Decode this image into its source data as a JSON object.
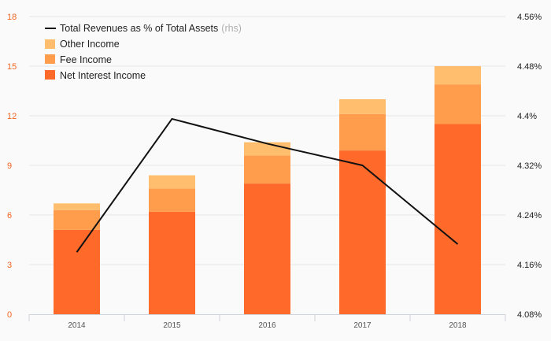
{
  "chart_data": {
    "type": "bar",
    "stacked": true,
    "categories": [
      "2014",
      "2015",
      "2016",
      "2017",
      "2018"
    ],
    "series": [
      {
        "name": "Net Interest Income",
        "values": [
          5.1,
          6.2,
          7.9,
          9.9,
          11.5
        ],
        "color": "#ff6a2b"
      },
      {
        "name": "Fee Income",
        "values": [
          1.2,
          1.4,
          1.7,
          2.2,
          2.4
        ],
        "color": "#ff9d4d"
      },
      {
        "name": "Other Income",
        "values": [
          0.4,
          0.8,
          0.8,
          0.9,
          1.1
        ],
        "color": "#ffbe6e"
      }
    ],
    "line_series": {
      "name": "Total Revenues as % of Total Assets",
      "name_suffix": "(rhs)",
      "values": [
        4.18,
        4.395,
        4.355,
        4.32,
        4.193
      ],
      "color": "#111111",
      "axis": "right"
    },
    "left_axis": {
      "ticks": [
        "0",
        "3",
        "6",
        "9",
        "12",
        "15",
        "18"
      ],
      "ylim": [
        0,
        18
      ]
    },
    "right_axis": {
      "ticks": [
        "4.08%",
        "4.16%",
        "4.24%",
        "4.32%",
        "4.4%",
        "4.48%",
        "4.56%"
      ],
      "ylim": [
        4.08,
        4.56
      ]
    },
    "grid": true,
    "legend_position": "top-left",
    "title": "",
    "xlabel": "",
    "ylabel": ""
  }
}
